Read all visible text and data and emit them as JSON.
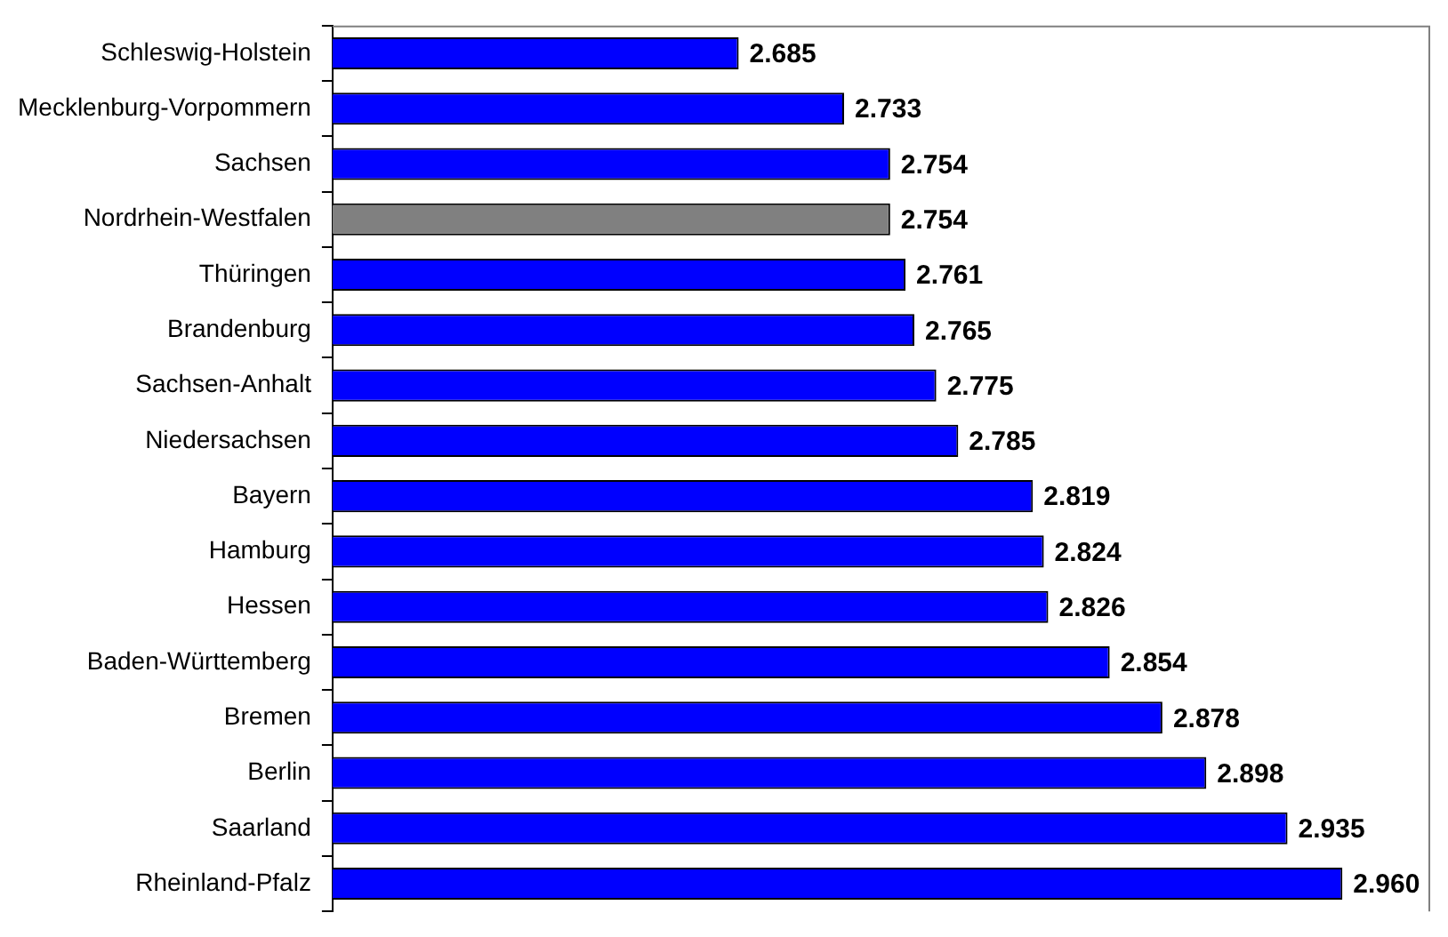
{
  "chart_data": {
    "type": "bar",
    "orientation": "horizontal",
    "categories": [
      "Schleswig-Holstein",
      "Mecklenburg-Vorpommern",
      "Sachsen",
      "Nordrhein-Westfalen",
      "Thüringen",
      "Brandenburg",
      "Sachsen-Anhalt",
      "Niedersachsen",
      "Bayern",
      "Hamburg",
      "Hessen",
      "Baden-Württemberg",
      "Bremen",
      "Berlin",
      "Saarland",
      "Rheinland-Pfalz"
    ],
    "values": [
      2.685,
      2.733,
      2.754,
      2.754,
      2.761,
      2.765,
      2.775,
      2.785,
      2.819,
      2.824,
      2.826,
      2.854,
      2.878,
      2.898,
      2.935,
      2.96
    ],
    "value_labels": [
      "2.685",
      "2.733",
      "2.754",
      "2.754",
      "2.761",
      "2.765",
      "2.775",
      "2.785",
      "2.819",
      "2.824",
      "2.826",
      "2.854",
      "2.878",
      "2.898",
      "2.935",
      "2.960"
    ],
    "colors": [
      "#0000ff",
      "#0000ff",
      "#0000ff",
      "#808080",
      "#0000ff",
      "#0000ff",
      "#0000ff",
      "#0000ff",
      "#0000ff",
      "#0000ff",
      "#0000ff",
      "#0000ff",
      "#0000ff",
      "#0000ff",
      "#0000ff",
      "#0000ff"
    ],
    "xlim": [
      2.5,
      3.0
    ],
    "tick_labels": "y",
    "grid": false,
    "legend": false
  }
}
